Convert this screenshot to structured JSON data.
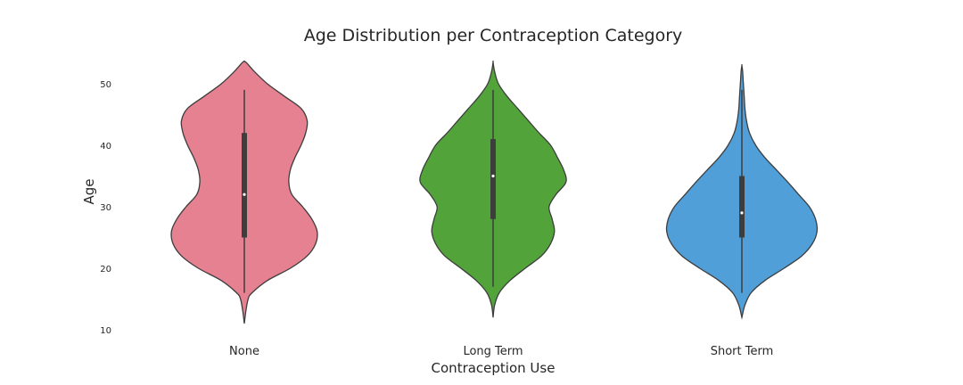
{
  "chart_data": {
    "type": "violin",
    "title": "Age Distribution per Contraception Category",
    "xlabel": "Contraception Use",
    "ylabel": "Age",
    "categories": [
      "None",
      "Long Term",
      "Short Term"
    ],
    "yticks": [
      10,
      20,
      30,
      40,
      50
    ],
    "ylim": [
      10,
      54
    ],
    "grid": false,
    "legend": "none",
    "series": [
      {
        "category": "None",
        "color": "#e58190",
        "kde_min": 11,
        "kde_max": 54,
        "whisker_low": 16,
        "q1": 25,
        "median": 32,
        "q3": 42,
        "whisker_high": 49,
        "profile": [
          [
            11,
            0.0
          ],
          [
            13,
            0.02
          ],
          [
            15,
            0.05
          ],
          [
            16,
            0.1
          ],
          [
            18,
            0.3
          ],
          [
            20,
            0.6
          ],
          [
            22,
            0.82
          ],
          [
            24,
            0.93
          ],
          [
            26,
            0.95
          ],
          [
            28,
            0.88
          ],
          [
            30,
            0.76
          ],
          [
            32,
            0.62
          ],
          [
            34,
            0.58
          ],
          [
            36,
            0.6
          ],
          [
            38,
            0.66
          ],
          [
            40,
            0.74
          ],
          [
            42,
            0.8
          ],
          [
            44,
            0.82
          ],
          [
            46,
            0.74
          ],
          [
            48,
            0.52
          ],
          [
            50,
            0.3
          ],
          [
            52,
            0.13
          ],
          [
            53.5,
            0.02
          ]
        ]
      },
      {
        "category": "Long Term",
        "color": "#52a43a",
        "kde_min": 12,
        "kde_max": 54,
        "whisker_low": 17,
        "q1": 28,
        "median": 35,
        "q3": 41,
        "whisker_high": 49,
        "profile": [
          [
            12,
            0.0
          ],
          [
            14,
            0.02
          ],
          [
            16,
            0.08
          ],
          [
            18,
            0.22
          ],
          [
            20,
            0.42
          ],
          [
            22,
            0.63
          ],
          [
            24,
            0.75
          ],
          [
            26,
            0.8
          ],
          [
            28,
            0.77
          ],
          [
            30,
            0.73
          ],
          [
            32,
            0.82
          ],
          [
            34,
            0.95
          ],
          [
            36,
            0.92
          ],
          [
            38,
            0.84
          ],
          [
            40,
            0.75
          ],
          [
            42,
            0.6
          ],
          [
            44,
            0.46
          ],
          [
            46,
            0.32
          ],
          [
            48,
            0.18
          ],
          [
            50,
            0.07
          ],
          [
            52,
            0.02
          ],
          [
            53.5,
            0.0
          ]
        ]
      },
      {
        "category": "Short Term",
        "color": "#509fd8",
        "kde_min": 12,
        "kde_max": 53,
        "whisker_low": 16,
        "q1": 25,
        "median": 29,
        "q3": 35,
        "whisker_high": 49,
        "profile": [
          [
            12,
            0.0
          ],
          [
            14,
            0.04
          ],
          [
            16,
            0.12
          ],
          [
            18,
            0.3
          ],
          [
            20,
            0.55
          ],
          [
            22,
            0.78
          ],
          [
            24,
            0.92
          ],
          [
            26,
            0.98
          ],
          [
            28,
            0.96
          ],
          [
            30,
            0.88
          ],
          [
            32,
            0.74
          ],
          [
            34,
            0.6
          ],
          [
            36,
            0.45
          ],
          [
            38,
            0.3
          ],
          [
            40,
            0.18
          ],
          [
            42,
            0.1
          ],
          [
            44,
            0.06
          ],
          [
            46,
            0.04
          ],
          [
            48,
            0.03
          ],
          [
            50,
            0.02
          ],
          [
            52,
            0.01
          ],
          [
            53,
            0.0
          ]
        ]
      }
    ]
  }
}
